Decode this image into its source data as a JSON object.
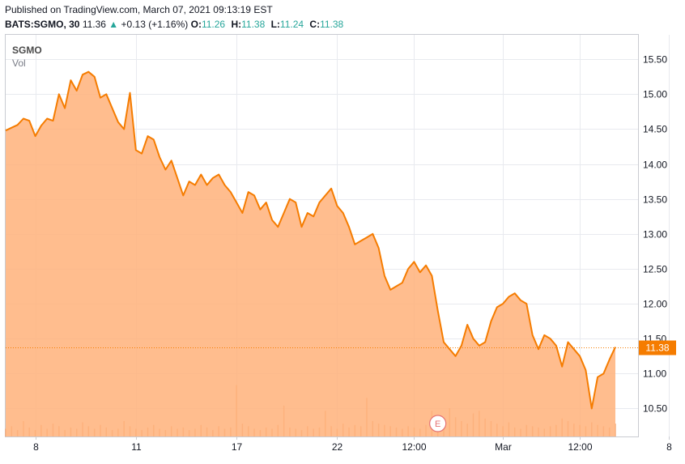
{
  "header": {
    "published": "Published on TradingView.com, March 07, 2021 09:13:19 EST",
    "symbol": "BATS:SGMO, 30",
    "last": "11.36",
    "change_arrow": "▲",
    "change": "+0.13 (+1.16%)",
    "o_label": "O:",
    "o_value": "11.26",
    "h_label": "H:",
    "h_value": "11.38",
    "l_label": "L:",
    "l_value": "11.24",
    "c_label": "C:",
    "c_value": "11.38"
  },
  "legend": {
    "name": "SGMO",
    "volume_label": "Vol"
  },
  "colors": {
    "line": "#f57c00",
    "fill": "#ffb27a",
    "price_tag_bg": "#f57c00",
    "grid": "#e8eaef",
    "axis_text": "#131722",
    "volume_bar": "#f0a779",
    "event_marker": "#e57373"
  },
  "chart_data": {
    "type": "area",
    "symbol": "SGMO",
    "interval": "30",
    "ylim": [
      10.1,
      15.85
    ],
    "yticks": [
      10.5,
      11.0,
      11.5,
      12.0,
      12.5,
      13.0,
      13.5,
      14.0,
      14.5,
      15.0,
      15.5
    ],
    "ytick_labels": [
      "10.50",
      "11.00",
      "11.50",
      "12.00",
      "12.50",
      "13.00",
      "13.50",
      "14.00",
      "14.50",
      "15.00",
      "15.50"
    ],
    "xticks": [
      {
        "label": "8",
        "index": 5
      },
      {
        "label": "11",
        "index": 22
      },
      {
        "label": "17",
        "index": 39
      },
      {
        "label": "22",
        "index": 56
      },
      {
        "label": "12:00",
        "index": 69
      },
      {
        "label": "Mar",
        "index": 84
      },
      {
        "label": "12:00",
        "index": 97
      },
      {
        "label": "8",
        "index": 112
      }
    ],
    "grid": true,
    "last_price": "11.38",
    "event_marker": {
      "label": "E",
      "index": 73
    },
    "values": [
      14.48,
      14.52,
      14.56,
      14.65,
      14.62,
      14.4,
      14.55,
      14.65,
      14.62,
      15.0,
      14.8,
      15.2,
      15.05,
      15.28,
      15.32,
      15.25,
      14.95,
      15.0,
      14.8,
      14.6,
      14.5,
      15.02,
      14.2,
      14.15,
      14.4,
      14.35,
      14.1,
      13.92,
      14.05,
      13.8,
      13.55,
      13.75,
      13.7,
      13.85,
      13.7,
      13.8,
      13.85,
      13.7,
      13.6,
      13.45,
      13.3,
      13.6,
      13.55,
      13.35,
      13.45,
      13.2,
      13.1,
      13.3,
      13.5,
      13.45,
      13.1,
      13.3,
      13.25,
      13.45,
      13.55,
      13.65,
      13.4,
      13.3,
      13.1,
      12.85,
      12.9,
      12.95,
      13.0,
      12.8,
      12.4,
      12.2,
      12.25,
      12.3,
      12.5,
      12.6,
      12.45,
      12.55,
      12.4,
      11.9,
      11.45,
      11.35,
      11.25,
      11.4,
      11.7,
      11.5,
      11.4,
      11.45,
      11.75,
      11.95,
      12.0,
      12.1,
      12.15,
      12.05,
      12.0,
      11.55,
      11.35,
      11.55,
      11.5,
      11.4,
      11.1,
      11.45,
      11.35,
      11.25,
      11.05,
      10.5,
      10.95,
      11.0,
      11.2,
      11.38
    ],
    "volume": [
      0.06,
      0.08,
      0.05,
      0.12,
      0.07,
      0.05,
      0.09,
      0.06,
      0.1,
      0.08,
      0.05,
      0.07,
      0.06,
      0.11,
      0.08,
      0.06,
      0.09,
      0.07,
      0.05,
      0.06,
      0.12,
      0.08,
      0.06,
      0.05,
      0.07,
      0.09,
      0.06,
      0.05,
      0.08,
      0.06,
      0.07,
      0.05,
      0.06,
      0.09,
      0.07,
      0.05,
      0.08,
      0.06,
      0.07,
      0.4,
      0.1,
      0.08,
      0.06,
      0.05,
      0.07,
      0.06,
      0.09,
      0.24,
      0.07,
      0.06,
      0.05,
      0.08,
      0.06,
      0.07,
      0.2,
      0.08,
      0.06,
      0.1,
      0.07,
      0.09,
      0.08,
      0.3,
      0.12,
      0.1,
      0.09,
      0.08,
      0.07,
      0.06,
      0.08,
      0.07,
      0.06,
      0.09,
      0.2,
      0.08,
      0.1,
      0.22,
      0.15,
      0.12,
      0.1,
      0.18,
      0.2,
      0.14,
      0.12,
      0.1,
      0.08,
      0.11,
      0.07,
      0.06,
      0.09,
      0.08,
      0.07,
      0.06,
      0.08,
      0.09,
      0.14,
      0.12,
      0.1,
      0.09,
      0.08,
      0.11,
      0.09,
      0.08,
      0.07,
      0.1
    ]
  }
}
